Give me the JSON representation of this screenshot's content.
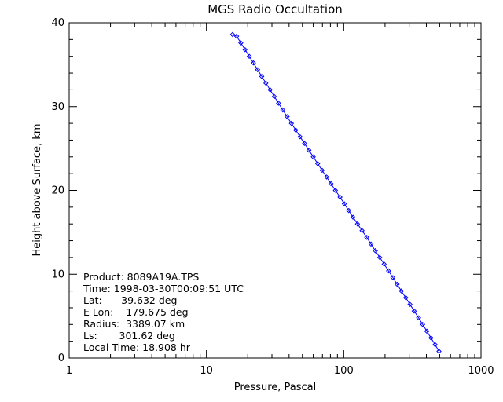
{
  "chart_data": {
    "type": "scatter",
    "title": "MGS Radio Occultation",
    "xlabel": "Pressure, Pascal",
    "ylabel": "Height above Surface, km",
    "xscale": "log",
    "xlim": [
      1,
      1000
    ],
    "ylim": [
      0,
      40
    ],
    "xticks": [
      "1",
      "10",
      "100",
      "1000"
    ],
    "yticks": [
      "0",
      "10",
      "20",
      "30",
      "40"
    ],
    "grid": false,
    "marker": "diamond",
    "series_color": "#0000ff",
    "x": [
      494,
      463,
      432,
      403,
      376,
      351,
      326,
      304,
      283,
      263,
      245,
      228,
      212,
      197,
      183,
      170,
      158,
      147,
      136,
      126,
      117,
      108.8,
      101,
      94,
      87,
      80.8,
      75,
      69.6,
      64.6,
      60,
      55.8,
      51.8,
      48.1,
      44.7,
      41.6,
      38.7,
      36.0,
      33.5,
      31.2,
      29.1,
      27.1,
      25.3,
      23.6,
      22.0,
      20.5,
      19.1,
      17.8,
      16.6,
      15.5
    ],
    "y": [
      0.8,
      1.6,
      2.4,
      3.2,
      4.0,
      4.8,
      5.6,
      6.4,
      7.2,
      8.0,
      8.8,
      9.6,
      10.4,
      11.2,
      12.0,
      12.8,
      13.6,
      14.4,
      15.2,
      16.0,
      16.8,
      17.6,
      18.4,
      19.2,
      20.0,
      20.8,
      21.6,
      22.4,
      23.2,
      24.0,
      24.8,
      25.6,
      26.4,
      27.2,
      28.0,
      28.8,
      29.6,
      30.4,
      31.2,
      32.0,
      32.8,
      33.6,
      34.4,
      35.2,
      36.0,
      36.8,
      37.6,
      38.4,
      38.6
    ]
  },
  "info": {
    "product": "Product: 8089A19A.TPS",
    "time": "Time: 1998-03-30T00:09:51 UTC",
    "lat": "Lat:     -39.632 deg",
    "elon": "E Lon:    179.675 deg",
    "radius": "Radius:  3389.07 km",
    "ls": "Ls:       301.62 deg",
    "local_time": "Local Time: 18.908 hr"
  }
}
